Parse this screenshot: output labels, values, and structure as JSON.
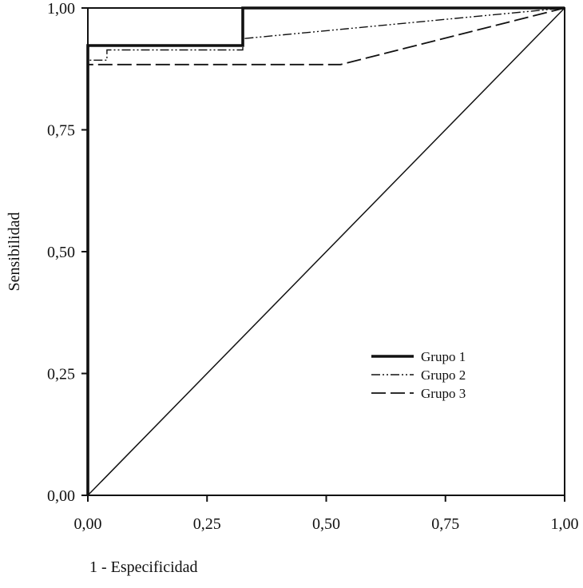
{
  "chart_data": {
    "type": "line",
    "xlabel": "1 - Especificidad",
    "ylabel": "Sensibilidad",
    "xlim": [
      0,
      1
    ],
    "ylim": [
      0,
      1
    ],
    "x_ticks": [
      {
        "value": 0,
        "label": "0,00"
      },
      {
        "value": 0.25,
        "label": "0,25"
      },
      {
        "value": 0.5,
        "label": "0,50"
      },
      {
        "value": 0.75,
        "label": "0,75"
      },
      {
        "value": 1,
        "label": "1,00"
      }
    ],
    "y_ticks": [
      {
        "value": 0,
        "label": "0,00"
      },
      {
        "value": 0.25,
        "label": "0,25"
      },
      {
        "value": 0.5,
        "label": "0,50"
      },
      {
        "value": 0.75,
        "label": "0,75"
      },
      {
        "value": 1,
        "label": "1,00"
      }
    ],
    "grid": false,
    "legend_position": "lower-right",
    "reference_line": {
      "x": [
        0,
        1
      ],
      "y": [
        0,
        1
      ]
    },
    "series": [
      {
        "name": "Grupo 1",
        "style": "solid-thick",
        "x": [
          0,
          0,
          0.325,
          0.325,
          1
        ],
        "y": [
          0,
          0.923,
          0.923,
          1,
          1
        ]
      },
      {
        "name": "Grupo 2",
        "style": "dash-dot-dot",
        "x": [
          0,
          0,
          0.04,
          0.04,
          0.325,
          0.325,
          1
        ],
        "y": [
          0,
          0.893,
          0.893,
          0.914,
          0.914,
          0.937,
          1
        ]
      },
      {
        "name": "Grupo 3",
        "style": "long-dash",
        "x": [
          0,
          0,
          0.53,
          1
        ],
        "y": [
          0,
          0.884,
          0.884,
          1
        ]
      }
    ]
  }
}
